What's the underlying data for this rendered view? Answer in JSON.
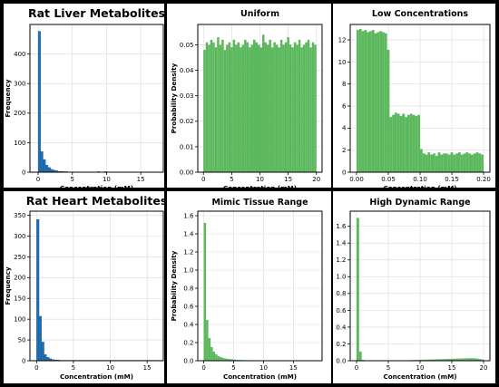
{
  "colors": {
    "blue": "#1f6fb2",
    "green": "#5cb85c",
    "border": "#000000",
    "grid": "#d9d9d9"
  },
  "chart_data": [
    {
      "id": "liver",
      "type": "bar",
      "title": "Rat Liver Metabolites",
      "xlabel": "Concentration (mM)",
      "ylabel": "Frequency",
      "color": "blue",
      "xlim": [
        -1.2,
        18.3
      ],
      "ylim": [
        0,
        500
      ],
      "xticks": [
        0,
        5,
        10,
        15
      ],
      "yticks": [
        0,
        100,
        200,
        300,
        400
      ],
      "grid": true,
      "bin_start": 0,
      "bin_width": 0.36,
      "values": [
        477,
        70,
        43,
        24,
        16,
        10,
        7,
        5,
        3,
        3,
        2,
        2,
        1,
        1,
        1,
        1,
        1,
        1,
        1,
        1,
        1,
        1,
        1,
        1,
        2,
        1,
        1,
        2,
        1,
        1,
        1,
        1,
        1,
        1,
        1,
        1,
        1,
        1,
        1,
        1,
        1,
        1,
        1,
        1,
        1,
        1,
        1,
        1,
        1,
        1
      ]
    },
    {
      "id": "uniform",
      "type": "bar",
      "title": "Uniform",
      "xlabel": "Concentration (mM)",
      "ylabel": "Probability Density",
      "color": "green",
      "xlim": [
        -1.0,
        21.0
      ],
      "ylim": [
        0,
        0.058
      ],
      "xticks": [
        0,
        5,
        10,
        15,
        20
      ],
      "yticks": [
        0,
        0.01,
        0.02,
        0.03,
        0.04,
        0.05
      ],
      "ytick_labels": [
        "0.00",
        "0.01",
        "0.02",
        "0.03",
        "0.04",
        "0.05"
      ],
      "grid": true,
      "bin_start": 0,
      "bin_width": 0.4,
      "values": [
        0.048,
        0.051,
        0.05,
        0.052,
        0.051,
        0.049,
        0.053,
        0.05,
        0.052,
        0.048,
        0.05,
        0.051,
        0.049,
        0.052,
        0.05,
        0.051,
        0.049,
        0.05,
        0.052,
        0.051,
        0.049,
        0.05,
        0.052,
        0.051,
        0.05,
        0.049,
        0.054,
        0.051,
        0.05,
        0.052,
        0.049,
        0.051,
        0.05,
        0.049,
        0.052,
        0.05,
        0.051,
        0.053,
        0.05,
        0.049,
        0.051,
        0.05,
        0.052,
        0.049,
        0.05,
        0.051,
        0.052,
        0.049,
        0.051,
        0.05
      ]
    },
    {
      "id": "low",
      "type": "bar",
      "title": "Low Concentrations",
      "xlabel": "Concentration (mM)",
      "ylabel": "",
      "color": "green",
      "xlim": [
        -0.01,
        0.21
      ],
      "ylim": [
        0,
        13.4
      ],
      "xticks": [
        0,
        0.05,
        0.1,
        0.15,
        0.2
      ],
      "xtick_labels": [
        "0.00",
        "0.05",
        "0.10",
        "0.15",
        "0.20"
      ],
      "yticks": [
        0,
        2,
        4,
        6,
        8,
        10,
        12
      ],
      "grid": true,
      "bin_start": 0,
      "bin_width": 0.004,
      "values": [
        12.9,
        13.0,
        12.8,
        12.9,
        12.7,
        12.8,
        12.9,
        12.6,
        12.7,
        12.8,
        12.7,
        12.6,
        11.1,
        5.0,
        5.2,
        5.4,
        5.3,
        5.1,
        5.3,
        5.0,
        5.2,
        5.3,
        5.2,
        5.1,
        5.2,
        2.1,
        1.7,
        1.6,
        1.8,
        1.6,
        1.7,
        1.5,
        1.8,
        1.6,
        1.7,
        1.7,
        1.6,
        1.8,
        1.6,
        1.7,
        1.8,
        1.6,
        1.7,
        1.8,
        1.7,
        1.6,
        1.7,
        1.8,
        1.7,
        1.6
      ]
    },
    {
      "id": "heart",
      "type": "bar",
      "title": "Rat Heart Metabolites",
      "xlabel": "Concentration (mM)",
      "ylabel": "Frequency",
      "color": "blue",
      "xlim": [
        -0.9,
        17.2
      ],
      "ylim": [
        0,
        360
      ],
      "xticks": [
        0,
        5,
        10,
        15
      ],
      "yticks": [
        0,
        50,
        100,
        150,
        200,
        250,
        300,
        350
      ],
      "grid": true,
      "bin_start": 0,
      "bin_width": 0.34,
      "values": [
        340,
        107,
        45,
        15,
        8,
        5,
        3,
        2,
        2,
        1,
        1,
        1,
        1,
        1,
        1,
        1,
        1,
        1,
        1,
        1,
        1,
        1,
        1,
        1,
        1,
        1,
        1,
        1,
        1,
        1,
        1,
        1,
        1,
        1,
        1,
        1,
        1,
        1,
        1,
        1,
        1,
        1,
        1,
        1,
        1,
        1,
        1,
        1,
        1,
        1
      ]
    },
    {
      "id": "mimic",
      "type": "bar",
      "title": "Mimic Tissue Range",
      "xlabel": "Concentration (mM)",
      "ylabel": "Probability Density",
      "color": "green",
      "xlim": [
        -1.0,
        19.8
      ],
      "ylim": [
        0,
        1.65
      ],
      "xticks": [
        0,
        5,
        10,
        15
      ],
      "yticks": [
        0,
        0.2,
        0.4,
        0.6,
        0.8,
        1.0,
        1.2,
        1.4,
        1.6
      ],
      "ytick_labels": [
        "0.0",
        "0.2",
        "0.4",
        "0.6",
        "0.8",
        "1.0",
        "1.2",
        "1.4",
        "1.6"
      ],
      "grid": true,
      "bin_start": 0,
      "bin_width": 0.38,
      "values": [
        1.52,
        0.45,
        0.25,
        0.15,
        0.1,
        0.07,
        0.05,
        0.04,
        0.03,
        0.025,
        0.02,
        0.018,
        0.015,
        0.012,
        0.01,
        0.009,
        0.008,
        0.007,
        0.006,
        0.005,
        0.005,
        0.004,
        0.004,
        0.003,
        0.003,
        0.003,
        0.002,
        0.002,
        0.002,
        0.002,
        0.002,
        0.002,
        0.001,
        0.001,
        0.001,
        0.001,
        0.001,
        0.001,
        0.001,
        0.001,
        0.001,
        0.001,
        0.001,
        0.001,
        0.001,
        0.001,
        0.001,
        0.001,
        0.001,
        0.001
      ]
    },
    {
      "id": "highdr",
      "type": "bar",
      "title": "High Dynamic Range",
      "xlabel": "Concentration (mM)",
      "ylabel": "",
      "color": "green",
      "xlim": [
        -1.0,
        21.0
      ],
      "ylim": [
        0,
        1.78
      ],
      "xticks": [
        0,
        5,
        10,
        15,
        20
      ],
      "yticks": [
        0,
        0.2,
        0.4,
        0.6,
        0.8,
        1.0,
        1.2,
        1.4,
        1.6
      ],
      "ytick_labels": [
        "0.0",
        "0.2",
        "0.4",
        "0.6",
        "0.8",
        "1.0",
        "1.2",
        "1.4",
        "1.6"
      ],
      "grid": true,
      "bin_start": 0,
      "bin_width": 0.4,
      "values": [
        1.7,
        0.11,
        0.01,
        0.003,
        0.002,
        0.002,
        0.002,
        0.002,
        0.002,
        0.002,
        0.002,
        0.002,
        0.002,
        0.002,
        0.002,
        0.002,
        0.003,
        0.003,
        0.004,
        0.005,
        0.006,
        0.007,
        0.008,
        0.009,
        0.01,
        0.011,
        0.012,
        0.013,
        0.014,
        0.015,
        0.016,
        0.017,
        0.018,
        0.019,
        0.02,
        0.021,
        0.022,
        0.023,
        0.024,
        0.025,
        0.026,
        0.027,
        0.028,
        0.029,
        0.03,
        0.03,
        0.028,
        0.025,
        0.02,
        0.015
      ]
    }
  ]
}
